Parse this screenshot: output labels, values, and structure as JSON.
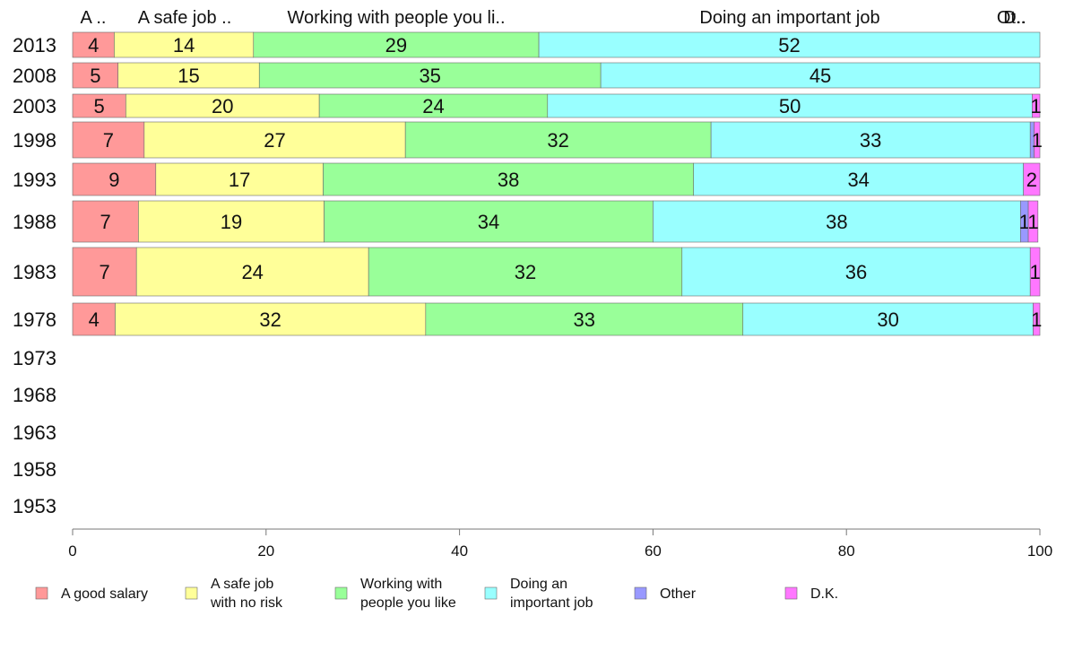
{
  "chart_data": {
    "type": "bar",
    "orientation": "horizontal",
    "stacked": true,
    "xlim": [
      0,
      100
    ],
    "x_ticks": [
      "0",
      "20",
      "40",
      "60",
      "80",
      "100"
    ],
    "categories": [
      "2013",
      "2008",
      "2003",
      "1998",
      "1993",
      "1988",
      "1983",
      "1978",
      "1973",
      "1968",
      "1963",
      "1958",
      "1953"
    ],
    "top_labels": [
      "A ..",
      "A safe job ..",
      "Working with people you li..",
      "Doing an important job",
      "Ot..",
      "D.."
    ],
    "series": [
      {
        "name": "A good salary",
        "legend": [
          "A good salary"
        ],
        "color": "#ff9999",
        "values": [
          4.3,
          4.7,
          5.5,
          7.4,
          8.6,
          6.8,
          6.6,
          4.4,
          null,
          null,
          null,
          null,
          null
        ],
        "labels": [
          "4",
          "5",
          "5",
          "7",
          "9",
          "7",
          "7",
          "4",
          "",
          "",
          "",
          "",
          ""
        ]
      },
      {
        "name": "A safe job with no risk",
        "legend": [
          "A safe job",
          "with no risk"
        ],
        "color": "#ffff99",
        "values": [
          14.4,
          14.6,
          20.0,
          27.0,
          17.3,
          19.2,
          24.0,
          32.1,
          null,
          null,
          null,
          null,
          null
        ],
        "labels": [
          "14",
          "15",
          "20",
          "27",
          "17",
          "19",
          "24",
          "32",
          "",
          "",
          "",
          "",
          ""
        ]
      },
      {
        "name": "Working with people you like",
        "legend": [
          "Working with",
          "people you like"
        ],
        "color": "#99ff99",
        "values": [
          29.5,
          35.3,
          23.6,
          31.6,
          38.3,
          34.0,
          32.4,
          32.8,
          null,
          null,
          null,
          null,
          null
        ],
        "labels": [
          "29",
          "35",
          "24",
          "32",
          "38",
          "34",
          "32",
          "33",
          "",
          "",
          "",
          "",
          ""
        ]
      },
      {
        "name": "Doing an important job",
        "legend": [
          "Doing an",
          "important job"
        ],
        "color": "#99ffff",
        "values": [
          51.8,
          45.4,
          50.1,
          33.0,
          34.1,
          38.0,
          36.0,
          30.0,
          null,
          null,
          null,
          null,
          null
        ],
        "labels": [
          "52",
          "45",
          "50",
          "33",
          "34",
          "38",
          "36",
          "30",
          "",
          "",
          "",
          "",
          ""
        ]
      },
      {
        "name": "Other",
        "legend": [
          "Other"
        ],
        "color": "#9999ff",
        "values": [
          0,
          0,
          0,
          0.4,
          0,
          0.8,
          0,
          0,
          null,
          null,
          null,
          null,
          null
        ],
        "labels": [
          "",
          "",
          "",
          "",
          "",
          "1",
          "",
          "",
          "",
          "",
          "",
          "",
          ""
        ]
      },
      {
        "name": "D.K.",
        "legend": [
          "D.K."
        ],
        "color": "#ff77ff",
        "values": [
          0,
          0,
          0.8,
          0.6,
          1.7,
          1.0,
          1.0,
          0.7,
          null,
          null,
          null,
          null,
          null
        ],
        "labels": [
          "",
          "",
          "1",
          "1",
          "2",
          "1",
          "1",
          "1",
          "",
          "",
          "",
          "",
          ""
        ]
      }
    ],
    "grid": false,
    "legend_position": "bottom"
  }
}
